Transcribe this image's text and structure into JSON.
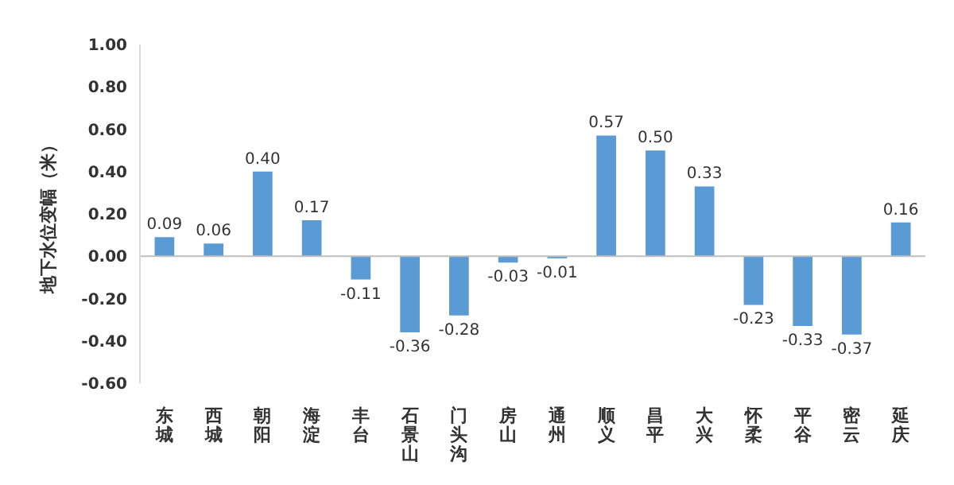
{
  "chart_data": {
    "type": "bar",
    "ylabel": "地下水位变幅（米）",
    "categories": [
      "东城",
      "西城",
      "朝阳",
      "海淀",
      "丰台",
      "石景山",
      "门头沟",
      "房山",
      "通州",
      "顺义",
      "昌平",
      "大兴",
      "怀柔",
      "平谷",
      "密云",
      "延庆"
    ],
    "values": [
      0.09,
      0.06,
      0.4,
      0.17,
      -0.11,
      -0.36,
      -0.28,
      -0.03,
      -0.01,
      0.57,
      0.5,
      0.33,
      -0.23,
      -0.33,
      -0.37,
      0.16
    ],
    "value_labels": [
      "0.09",
      "0.06",
      "0.40",
      "0.17",
      "-0.11",
      "-0.36",
      "-0.28",
      "-0.03",
      "-0.01",
      "0.57",
      "0.50",
      "0.33",
      "-0.23",
      "-0.33",
      "-0.37",
      "0.16"
    ],
    "color": "#5b9bd5",
    "ylim": [
      -0.6,
      1.0
    ],
    "yticks": [
      {
        "value": -0.6,
        "label": "-0.60"
      },
      {
        "value": -0.4,
        "label": "-0.40"
      },
      {
        "value": -0.2,
        "label": "-0.20"
      },
      {
        "value": 0,
        "label": "0.00"
      },
      {
        "value": 0.2,
        "label": "0.20"
      },
      {
        "value": 0.4,
        "label": "0.40"
      },
      {
        "value": 0.6,
        "label": "0.60"
      },
      {
        "value": 0.8,
        "label": "0.80"
      },
      {
        "value": 1.0,
        "label": "1.00"
      }
    ],
    "ref_lines": [
      {
        "axis": "y",
        "value": 0,
        "color": "#bfbfbf"
      }
    ],
    "grid": false,
    "legend": false
  }
}
